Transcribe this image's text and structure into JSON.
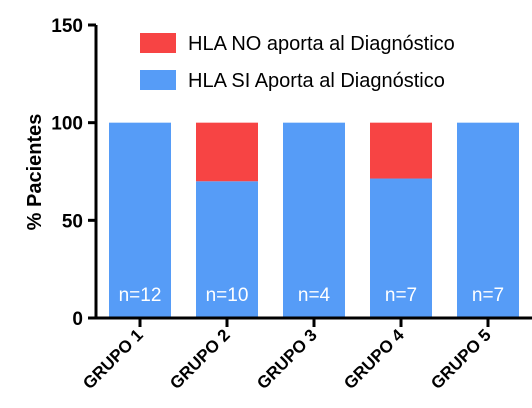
{
  "chart_data": {
    "type": "bar",
    "stacked": true,
    "categories": [
      "GRUPO 1",
      "GRUPO 2",
      "GRUPO 3",
      "GRUPO 4",
      "GRUPO 5"
    ],
    "series": [
      {
        "name": "HLA SI Aporta al Diagnóstico",
        "color": "#569cf7",
        "values": [
          100,
          70,
          100,
          71.4,
          100
        ]
      },
      {
        "name": "HLA NO aporta al Diagnóstico",
        "color": "#f74444",
        "values": [
          0,
          30,
          0,
          28.6,
          0
        ]
      }
    ],
    "bar_labels": [
      "n=12",
      "n=10",
      "n=4",
      "n=7",
      "n=7"
    ],
    "ylabel": "% Pacientes",
    "xlabel": "",
    "ylim": [
      0,
      150
    ],
    "yticks": [
      0,
      50,
      100,
      150
    ],
    "legend_order": [
      "HLA NO aporta al Diagnóstico",
      "HLA SI Aporta al Diagnóstico"
    ],
    "legend_position": "top-right",
    "grid": false
  }
}
